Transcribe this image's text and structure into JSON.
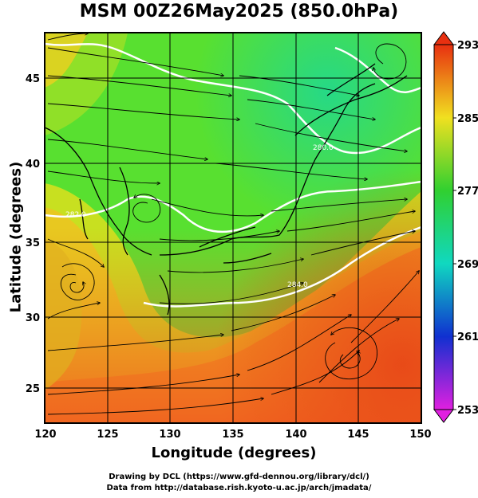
{
  "title": "MSM 00Z26May2025 (850.0hPa)",
  "xlabel": "Longitude (degrees)",
  "ylabel": "Latitude  (degrees)",
  "credit_line1": "Drawing by DCL (https://www.gfd-dennou.org/library/dcl/)",
  "credit_line2": "Data from http://database.rish.kyoto-u.ac.jp/arch/jmadata/",
  "x_ticks": [
    "120",
    "125",
    "130",
    "135",
    "140",
    "145",
    "150"
  ],
  "y_ticks": [
    "25",
    "30",
    "35",
    "40",
    "45"
  ],
  "colorbar": {
    "min": 253,
    "max": 293,
    "labels": [
      "293",
      "285",
      "277",
      "269",
      "261",
      "253"
    ]
  },
  "contour_labels": [
    "280.0",
    "282.0",
    "284.0"
  ],
  "colors": {
    "cold": "#e020e0",
    "cool": "#1030d0",
    "mid": "#10d8c0",
    "neutral": "#30d030",
    "warm": "#f0e020",
    "hot": "#e83010"
  },
  "chart_data": {
    "type": "heatmap",
    "variable": "temperature (K) with wind streamlines",
    "xlim": [
      120,
      150
    ],
    "ylim": [
      22.5,
      47.5
    ]
  }
}
